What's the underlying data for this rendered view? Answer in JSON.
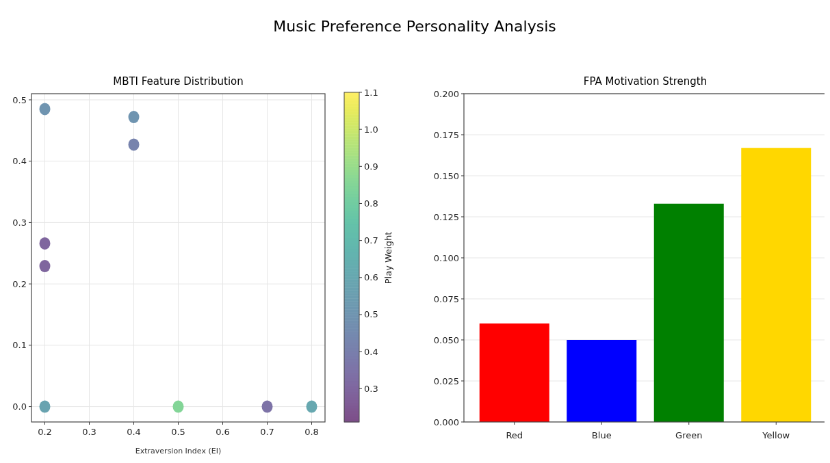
{
  "chart_data": [
    {
      "type": "scatter",
      "title": "MBTI Feature Distribution",
      "xlabel": "Extraversion Index (EI)",
      "clabel": "Play Weight",
      "annotations": [
        "Music Preference Personality Analysis"
      ],
      "x": [
        0.2,
        0.4,
        0.4,
        0.2,
        0.2,
        0.2,
        0.5,
        0.7,
        0.8
      ],
      "values": [
        0.485,
        0.472,
        0.427,
        0.266,
        0.229,
        0,
        0,
        0,
        0
      ],
      "cvalues": [
        0.5,
        0.5,
        0.42,
        0.3,
        0.3,
        0.58,
        0.85,
        0.35,
        0.6
      ],
      "clim": [
        0.21,
        1.1
      ],
      "cticks": [
        0.3,
        0.4,
        0.5,
        0.6,
        0.7,
        0.8,
        0.9,
        {
          "value": 1,
          "label": "1.0"
        },
        1.1
      ],
      "xlim": [
        0.17,
        0.83
      ],
      "xticks": [
        0.2,
        0.3,
        0.4,
        0.5,
        0.6,
        0.7,
        0.8
      ],
      "ylim": [
        -0.025,
        0.51
      ],
      "yticks": [
        {
          "value": 0,
          "label": "0.0"
        },
        0.1,
        0.2,
        0.3,
        0.4,
        0.5
      ],
      "grid": true,
      "marker": "circle"
    },
    {
      "type": "bar",
      "title": "FPA Motivation Strength",
      "categories": [
        "Red",
        "Blue",
        "Green",
        "Yellow"
      ],
      "values": [
        0.06,
        0.05,
        0.133,
        0.167
      ],
      "colors": [
        "#ff0000",
        "#0000ff",
        "#008000",
        "#ffd700"
      ],
      "ylim": [
        0,
        0.2
      ],
      "yticks": [
        {
          "value": 0,
          "label": "0.000"
        },
        0.025,
        {
          "value": 0.05,
          "label": "0.050"
        },
        0.075,
        {
          "value": 0.1,
          "label": "0.100"
        },
        0.125,
        {
          "value": 0.15,
          "label": "0.150"
        },
        0.175,
        {
          "value": 0.2,
          "label": "0.200"
        }
      ],
      "grid": "y"
    }
  ]
}
